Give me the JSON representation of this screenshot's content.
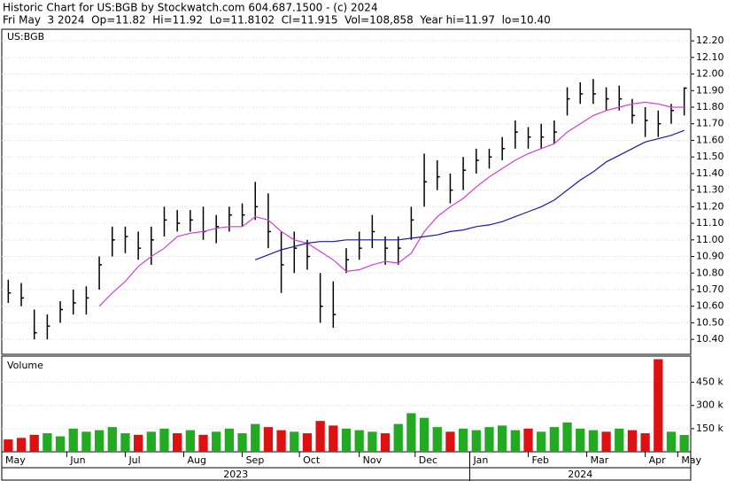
{
  "chart_data": [
    {
      "type": "ohlc",
      "title": "Historic Chart for US:BGB by Stockwatch.com 604.687.1500 - (c) 2024",
      "subtitle": "Fri May  3 2024  Op=11.82  Hi=11.92  Lo=11.8102  Cl=11.915  Vol=108,858  Year hi=11.97  lo=10.40",
      "label": "US:BGB",
      "color": "#000000",
      "high": [
        10.76,
        10.74,
        10.58,
        10.55,
        10.63,
        10.7,
        10.72,
        10.9,
        11.08,
        11.08,
        11.05,
        11.08,
        11.2,
        11.18,
        11.18,
        11.2,
        11.15,
        11.2,
        11.22,
        11.35,
        11.28,
        11.05,
        11.05,
        11.0,
        10.8,
        10.75,
        10.95,
        11.05,
        11.15,
        11.02,
        11.02,
        11.2,
        11.52,
        11.48,
        11.4,
        11.5,
        11.55,
        11.55,
        11.62,
        11.72,
        11.68,
        11.7,
        11.72,
        11.92,
        11.95,
        11.97,
        11.92,
        11.93,
        11.85,
        11.8,
        11.78,
        11.82,
        11.92
      ],
      "low": [
        10.62,
        10.6,
        10.4,
        10.4,
        10.5,
        10.55,
        10.55,
        10.7,
        10.9,
        10.92,
        10.88,
        10.85,
        11.02,
        11.05,
        11.05,
        11.0,
        10.98,
        11.05,
        11.08,
        11.12,
        10.95,
        10.68,
        10.8,
        10.82,
        10.5,
        10.47,
        10.8,
        10.88,
        10.95,
        10.85,
        10.85,
        11.0,
        11.2,
        11.3,
        11.22,
        11.3,
        11.4,
        11.43,
        11.48,
        11.55,
        11.55,
        11.55,
        11.58,
        11.75,
        11.82,
        11.82,
        11.78,
        11.78,
        11.7,
        11.62,
        11.62,
        11.7,
        11.75
      ],
      "close": [
        10.68,
        10.65,
        10.44,
        10.48,
        10.58,
        10.62,
        10.65,
        10.85,
        11.0,
        11.02,
        10.95,
        11.0,
        11.12,
        11.1,
        11.12,
        11.05,
        11.08,
        11.15,
        11.15,
        11.2,
        11.05,
        10.85,
        10.95,
        10.9,
        10.6,
        10.55,
        10.88,
        10.95,
        11.05,
        10.95,
        10.95,
        11.12,
        11.35,
        11.38,
        11.3,
        11.42,
        11.48,
        11.5,
        11.55,
        11.65,
        11.62,
        11.62,
        11.65,
        11.85,
        11.88,
        11.88,
        11.85,
        11.85,
        11.75,
        11.72,
        11.7,
        11.78,
        11.915
      ],
      "lines": [
        {
          "color": "#d040d0",
          "values": [
            null,
            null,
            null,
            null,
            null,
            null,
            null,
            10.6,
            10.68,
            10.75,
            10.84,
            10.9,
            10.95,
            11.02,
            11.04,
            11.05,
            11.07,
            11.08,
            11.08,
            11.14,
            11.12,
            11.05,
            11.0,
            10.98,
            10.93,
            10.88,
            10.81,
            10.82,
            10.85,
            10.87,
            10.86,
            10.92,
            11.05,
            11.14,
            11.2,
            11.25,
            11.32,
            11.38,
            11.43,
            11.48,
            11.52,
            11.55,
            11.58,
            11.65,
            11.7,
            11.75,
            11.78,
            11.8,
            11.82,
            11.83,
            11.82,
            11.8,
            11.8
          ]
        },
        {
          "color": "#1a1aaa",
          "values": [
            null,
            null,
            null,
            null,
            null,
            null,
            null,
            null,
            null,
            null,
            null,
            null,
            null,
            null,
            null,
            null,
            null,
            null,
            null,
            10.88,
            10.91,
            10.94,
            10.96,
            10.98,
            10.99,
            10.99,
            11.0,
            11.0,
            11.0,
            11.0,
            11.0,
            11.01,
            11.02,
            11.03,
            11.05,
            11.06,
            11.08,
            11.09,
            11.11,
            11.14,
            11.17,
            11.2,
            11.24,
            11.3,
            11.36,
            11.41,
            11.47,
            11.51,
            11.55,
            11.59,
            11.61,
            11.63,
            11.66
          ]
        }
      ],
      "ylim": [
        10.31,
        12.27
      ],
      "yticks": [
        {
          "value": 10.4,
          "label": "10.40"
        },
        {
          "value": 10.5,
          "label": "10.50"
        },
        {
          "value": 10.6,
          "label": "10.60"
        },
        {
          "value": 10.7,
          "label": "10.70"
        },
        {
          "value": 10.8,
          "label": "10.80"
        },
        {
          "value": 10.9,
          "label": "10.90"
        },
        {
          "value": 11,
          "label": "11.00"
        },
        {
          "value": 11.1,
          "label": "11.10"
        },
        {
          "value": 11.2,
          "label": "11.20"
        },
        {
          "value": 11.3,
          "label": "11.30"
        },
        {
          "value": 11.4,
          "label": "11.40"
        },
        {
          "value": 11.5,
          "label": "11.50"
        },
        {
          "value": 11.6,
          "label": "11.60"
        },
        {
          "value": 11.7,
          "label": "11.70"
        },
        {
          "value": 11.8,
          "label": "11.80"
        },
        {
          "value": 11.9,
          "label": "11.90"
        },
        {
          "value": 12,
          "label": "12.00"
        },
        {
          "value": 12.1,
          "label": "12.10"
        },
        {
          "value": 12.2,
          "label": "12.20"
        }
      ],
      "grid": true
    },
    {
      "type": "bar",
      "label": "Volume",
      "up_color": "#22aa22",
      "down_color": "#dd1111",
      "values": [
        80000,
        90000,
        110000,
        120000,
        100000,
        150000,
        130000,
        140000,
        160000,
        120000,
        110000,
        130000,
        150000,
        120000,
        140000,
        110000,
        130000,
        150000,
        120000,
        180000,
        160000,
        140000,
        130000,
        120000,
        200000,
        170000,
        150000,
        140000,
        130000,
        120000,
        180000,
        250000,
        220000,
        160000,
        130000,
        150000,
        140000,
        160000,
        170000,
        140000,
        150000,
        130000,
        160000,
        190000,
        150000,
        140000,
        130000,
        150000,
        140000,
        120000,
        600000,
        130000,
        108858
      ],
      "ylim": [
        0,
        620000
      ],
      "yticks": [
        {
          "value": 150000,
          "label": "150 k"
        },
        {
          "value": 300000,
          "label": "300 k"
        },
        {
          "value": 450000,
          "label": "450 k"
        }
      ],
      "xlim": [
        -0.5,
        52.5
      ],
      "xticks": [
        {
          "value": -0.5,
          "label": "May"
        },
        {
          "value": 4.5,
          "label": "Jun"
        },
        {
          "value": 9,
          "label": "Jul"
        },
        {
          "value": 13.5,
          "label": "Aug"
        },
        {
          "value": 18,
          "label": "Sep"
        },
        {
          "value": 22.4,
          "label": "Oct"
        },
        {
          "value": 27,
          "label": "Nov"
        },
        {
          "value": 31.3,
          "label": "Dec"
        },
        {
          "value": 35.5,
          "label": "Jan"
        },
        {
          "value": 40,
          "label": "Feb"
        },
        {
          "value": 44.5,
          "label": "Mar"
        },
        {
          "value": 49,
          "label": "Apr"
        },
        {
          "value": 51.5,
          "label": "May"
        }
      ],
      "years": [
        {
          "value": -0.5,
          "label": "2023"
        },
        {
          "value": 35.5,
          "label": "2024"
        }
      ],
      "grid": true
    }
  ]
}
